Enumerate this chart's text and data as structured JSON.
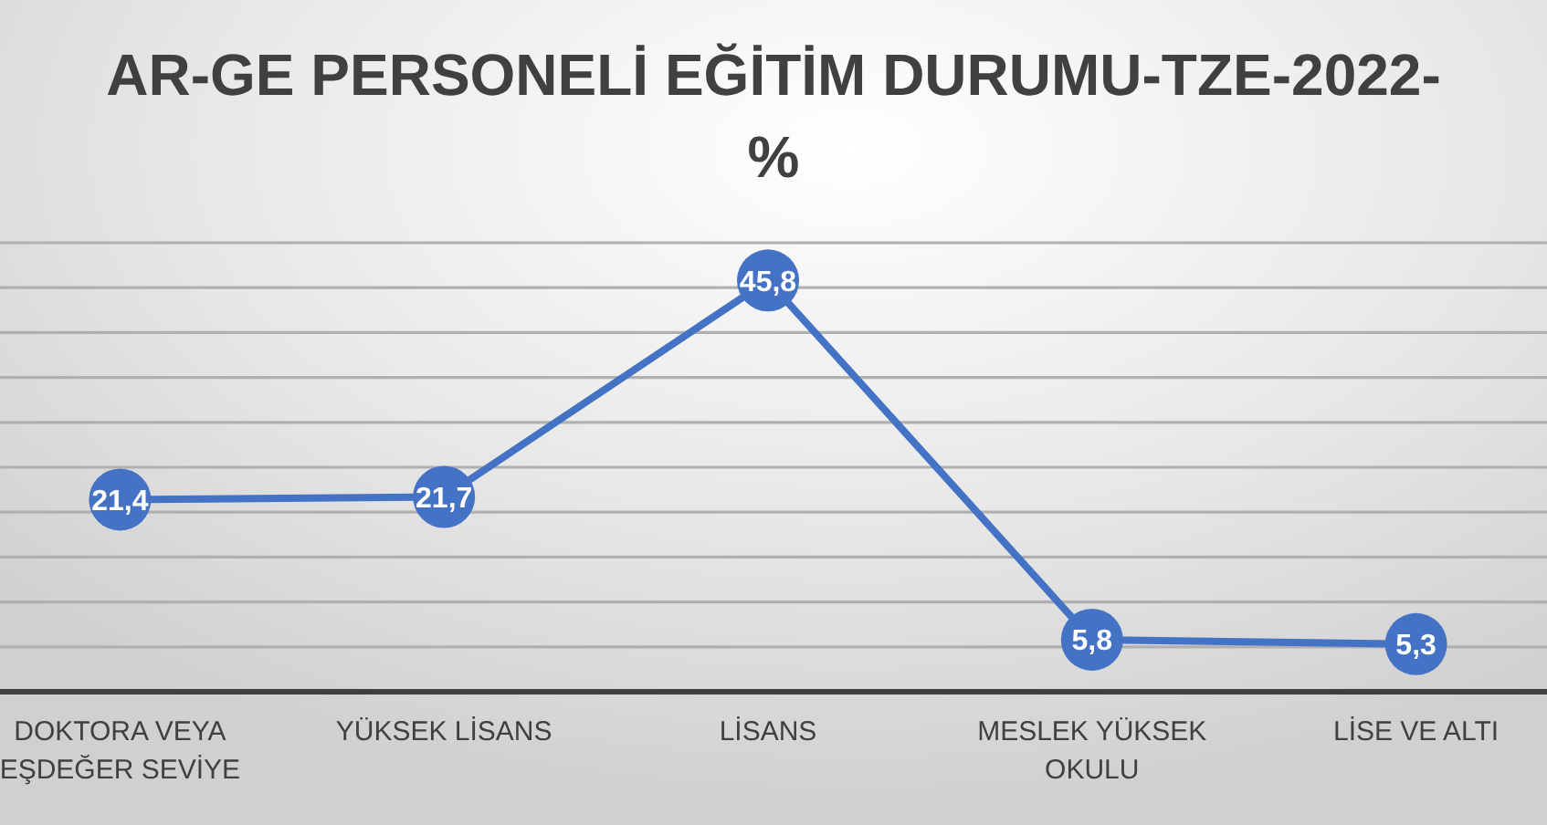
{
  "chart_data": {
    "type": "line",
    "title": "AR-GE PERSONELİ EĞİTİM DURUMU-TZE-2022-%",
    "categories": [
      "DOKTORA VEYA EŞDEĞER SEVİYE",
      "YÜKSEK LİSANS",
      "LİSANS",
      "MESLEK YÜKSEK OKULU",
      "LİSE VE ALTI"
    ],
    "values": [
      21.4,
      21.7,
      45.8,
      5.8,
      5.3
    ],
    "color": "#4472c4",
    "value_labels": [
      "21,4",
      "21,7",
      "45,8",
      "5,8",
      "5,3"
    ],
    "ylim": [
      0,
      50
    ],
    "yticks": [
      0,
      5,
      10,
      15,
      20,
      25,
      30,
      35,
      40,
      45,
      50
    ],
    "grid": "y",
    "tick_labels": "x",
    "marker": "circle",
    "line_style": "solid"
  }
}
